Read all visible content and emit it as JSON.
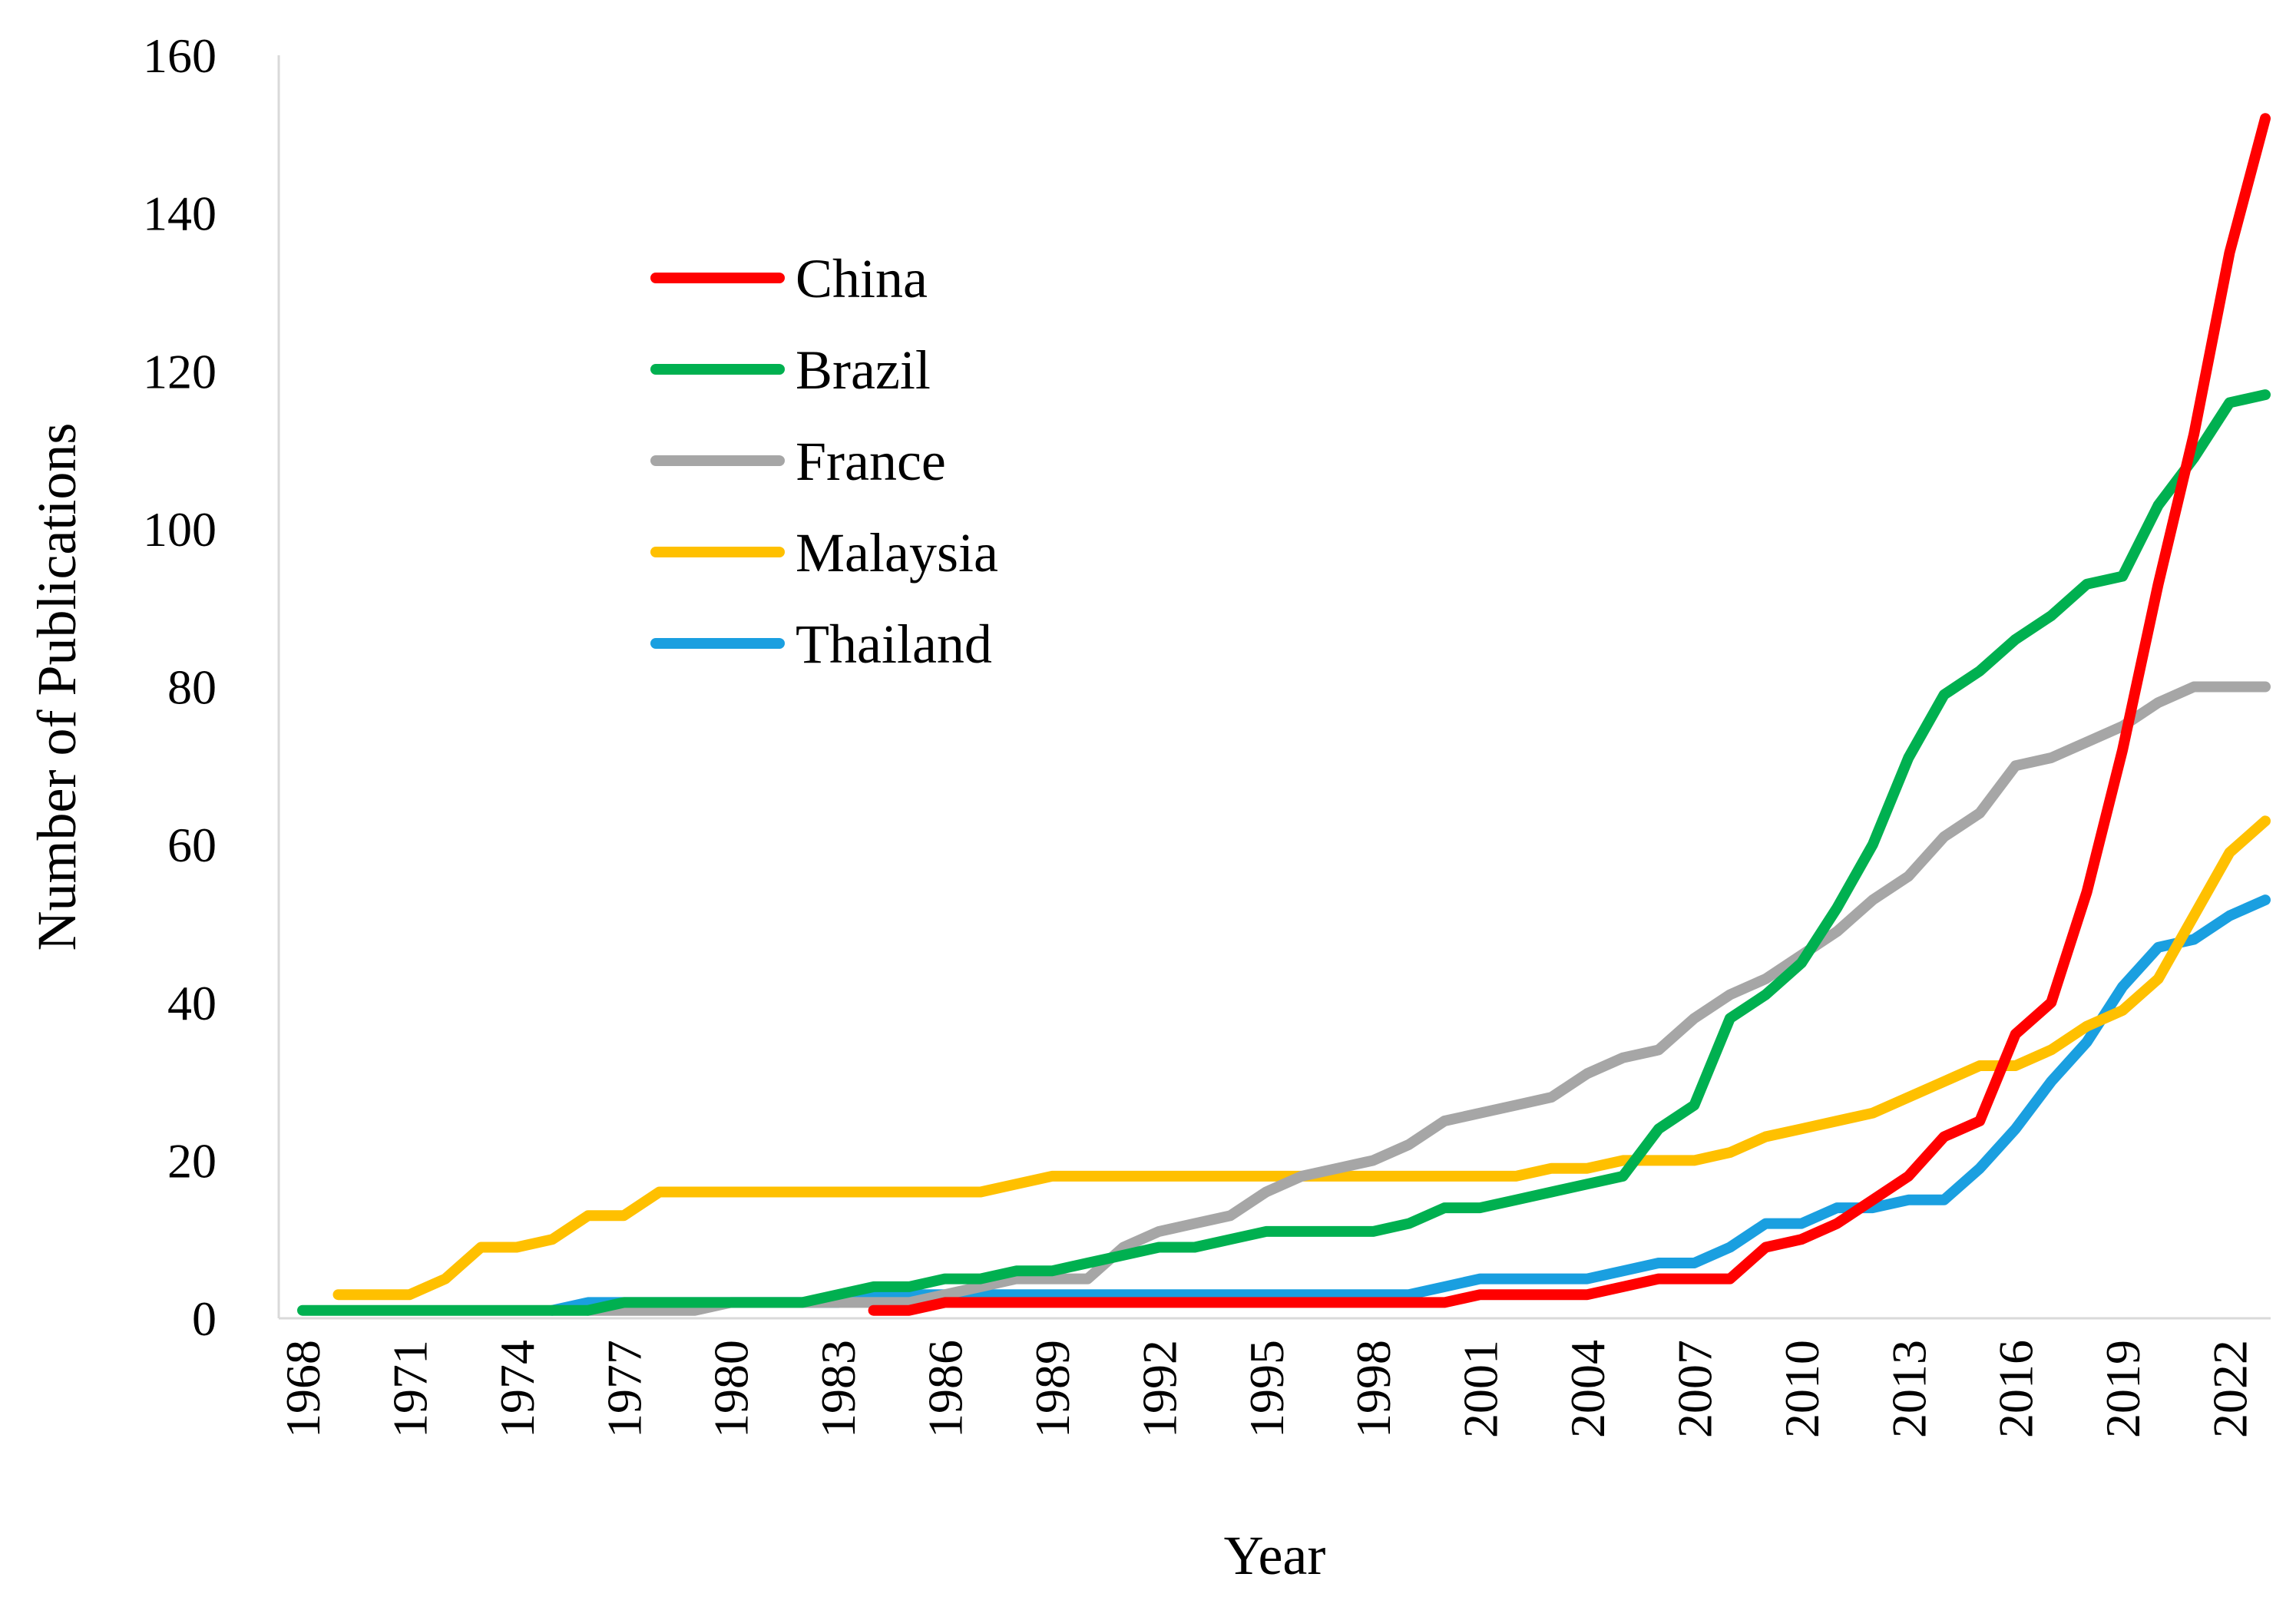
{
  "chart_data": {
    "type": "line",
    "title": "",
    "xlabel": "Year",
    "ylabel": "Number of Publications",
    "xlim": [
      1968,
      2023
    ],
    "ylim": [
      0,
      160
    ],
    "y_ticks": [
      "0",
      "20",
      "40",
      "60",
      "80",
      "100",
      "120",
      "140",
      "160"
    ],
    "x_ticks": [
      "1968",
      "1971",
      "1974",
      "1977",
      "1980",
      "1983",
      "1986",
      "1989",
      "1992",
      "1995",
      "1998",
      "2001",
      "2004",
      "2007",
      "2010",
      "2013",
      "2016",
      "2019",
      "2022"
    ],
    "grid": false,
    "legend_position": "upper-left-inside",
    "series": [
      {
        "name": "China",
        "color": "#ff0000",
        "x": [
          1984,
          1985,
          1986,
          1987,
          1988,
          1989,
          1990,
          1991,
          1992,
          1993,
          1994,
          1995,
          1996,
          1997,
          1998,
          1999,
          2000,
          2001,
          2002,
          2003,
          2004,
          2005,
          2006,
          2007,
          2008,
          2009,
          2010,
          2011,
          2012,
          2013,
          2014,
          2015,
          2016,
          2017,
          2018,
          2019,
          2020,
          2021,
          2022,
          2023
        ],
        "y": [
          1,
          1,
          2,
          2,
          2,
          2,
          2,
          2,
          2,
          2,
          2,
          2,
          2,
          2,
          2,
          2,
          2,
          3,
          3,
          3,
          3,
          4,
          5,
          5,
          5,
          9,
          10,
          12,
          15,
          18,
          23,
          25,
          36,
          40,
          54,
          72,
          93,
          112,
          135,
          152
        ]
      },
      {
        "name": "Brazil",
        "color": "#00b050",
        "x": [
          1968,
          1969,
          1970,
          1971,
          1972,
          1973,
          1974,
          1975,
          1976,
          1977,
          1978,
          1979,
          1980,
          1981,
          1982,
          1983,
          1984,
          1985,
          1986,
          1987,
          1988,
          1989,
          1990,
          1991,
          1992,
          1993,
          1994,
          1995,
          1996,
          1997,
          1998,
          1999,
          2000,
          2001,
          2002,
          2003,
          2004,
          2005,
          2006,
          2007,
          2008,
          2009,
          2010,
          2011,
          2012,
          2013,
          2014,
          2015,
          2016,
          2017,
          2018,
          2019,
          2020,
          2021,
          2022,
          2023
        ],
        "y": [
          1,
          1,
          1,
          1,
          1,
          1,
          1,
          1,
          1,
          2,
          2,
          2,
          2,
          2,
          2,
          3,
          4,
          4,
          5,
          5,
          6,
          6,
          7,
          8,
          9,
          9,
          10,
          11,
          11,
          11,
          11,
          12,
          14,
          14,
          15,
          16,
          17,
          18,
          24,
          27,
          38,
          41,
          45,
          52,
          60,
          71,
          79,
          82,
          86,
          89,
          93,
          94,
          103,
          109,
          116,
          117
        ]
      },
      {
        "name": "France",
        "color": "#a6a6a6",
        "x": [
          1976,
          1977,
          1978,
          1979,
          1980,
          1981,
          1982,
          1983,
          1984,
          1985,
          1986,
          1987,
          1988,
          1989,
          1990,
          1991,
          1992,
          1993,
          1994,
          1995,
          1996,
          1997,
          1998,
          1999,
          2000,
          2001,
          2002,
          2003,
          2004,
          2005,
          2006,
          2007,
          2008,
          2009,
          2010,
          2011,
          2012,
          2013,
          2014,
          2015,
          2016,
          2017,
          2018,
          2019,
          2020,
          2021,
          2022,
          2023
        ],
        "y": [
          1,
          1,
          1,
          1,
          2,
          2,
          2,
          2,
          2,
          2,
          3,
          4,
          5,
          5,
          5,
          9,
          11,
          12,
          13,
          16,
          18,
          19,
          20,
          22,
          25,
          26,
          27,
          28,
          31,
          33,
          34,
          38,
          41,
          43,
          46,
          49,
          53,
          56,
          61,
          64,
          70,
          71,
          73,
          75,
          78,
          80,
          80,
          80
        ]
      },
      {
        "name": "Malaysia",
        "color": "#ffc000",
        "x": [
          1969,
          1970,
          1971,
          1972,
          1973,
          1974,
          1975,
          1976,
          1977,
          1978,
          1979,
          1980,
          1981,
          1982,
          1983,
          1984,
          1985,
          1986,
          1987,
          1988,
          1989,
          1990,
          1991,
          1992,
          1993,
          1994,
          1995,
          1996,
          1997,
          1998,
          1999,
          2000,
          2001,
          2002,
          2003,
          2004,
          2005,
          2006,
          2007,
          2008,
          2009,
          2010,
          2011,
          2012,
          2013,
          2014,
          2015,
          2016,
          2017,
          2018,
          2019,
          2020,
          2021,
          2022,
          2023
        ],
        "y": [
          3,
          3,
          3,
          5,
          9,
          9,
          10,
          13,
          13,
          16,
          16,
          16,
          16,
          16,
          16,
          16,
          16,
          16,
          16,
          17,
          18,
          18,
          18,
          18,
          18,
          18,
          18,
          18,
          18,
          18,
          18,
          18,
          18,
          18,
          19,
          19,
          20,
          20,
          20,
          21,
          23,
          24,
          25,
          26,
          28,
          30,
          32,
          32,
          34,
          37,
          39,
          43,
          51,
          59,
          63
        ]
      },
      {
        "name": "Thailand",
        "color": "#1a9fe0",
        "x": [
          1975,
          1976,
          1977,
          1978,
          1979,
          1980,
          1981,
          1982,
          1983,
          1984,
          1985,
          1986,
          1987,
          1988,
          1989,
          1990,
          1991,
          1992,
          1993,
          1994,
          1995,
          1996,
          1997,
          1998,
          1999,
          2000,
          2001,
          2002,
          2003,
          2004,
          2005,
          2006,
          2007,
          2008,
          2009,
          2010,
          2011,
          2012,
          2013,
          2014,
          2015,
          2016,
          2017,
          2018,
          2019,
          2020,
          2021,
          2022,
          2023
        ],
        "y": [
          1,
          2,
          2,
          2,
          2,
          2,
          2,
          2,
          2,
          3,
          3,
          3,
          3,
          3,
          3,
          3,
          3,
          3,
          3,
          3,
          3,
          3,
          3,
          3,
          3,
          4,
          5,
          5,
          5,
          5,
          6,
          7,
          7,
          9,
          12,
          12,
          14,
          14,
          15,
          15,
          19,
          24,
          30,
          35,
          42,
          47,
          48,
          51,
          53
        ]
      }
    ]
  }
}
